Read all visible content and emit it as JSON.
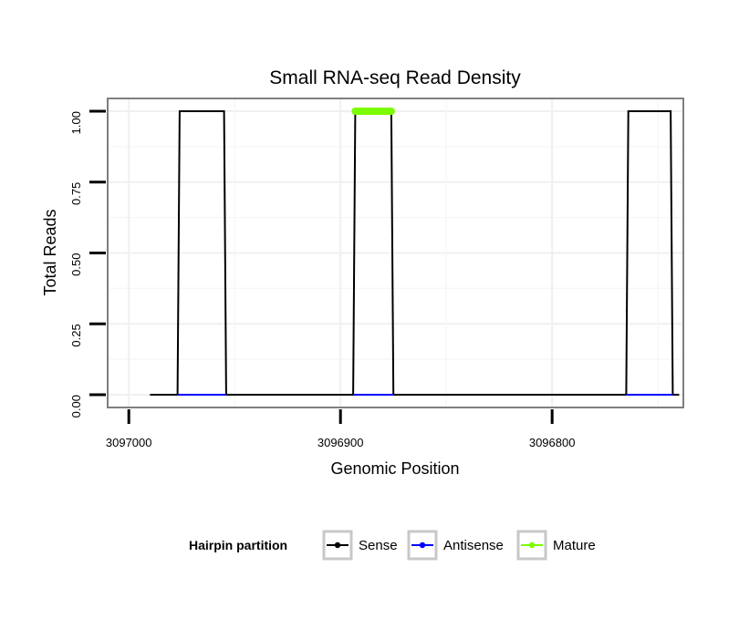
{
  "chart_data": {
    "type": "line",
    "title": "Small RNA-seq Read Density",
    "xlabel": "Genomic Position",
    "ylabel": "Total Reads",
    "xlim": [
      3097010,
      3096738
    ],
    "ylim": [
      -0.045,
      1.045
    ],
    "x_reversed": true,
    "xticks": [
      3097000,
      3096900,
      3096800
    ],
    "xtick_labels": [
      "3097000",
      "3096900",
      "3096800"
    ],
    "yticks": [
      0,
      0.25,
      0.5,
      0.75,
      1.0
    ],
    "ytick_labels": [
      "0.00",
      "0.25",
      "0.50",
      "0.75",
      "1.00"
    ],
    "grid": true,
    "legend_position": "bottom",
    "legend_title": "Hairpin partition",
    "series": [
      {
        "name": "Sense",
        "color": "#000000",
        "x": [
          3096990,
          3096977,
          3096976,
          3096955,
          3096954,
          3096894,
          3096893,
          3096876,
          3096875,
          3096765,
          3096764,
          3096744,
          3096743,
          3096740
        ],
        "y": [
          0,
          0,
          1,
          1,
          0,
          0,
          1,
          1,
          0,
          0,
          1,
          1,
          0,
          0
        ]
      },
      {
        "name": "Antisense",
        "color": "#0000ff",
        "x": [
          3096977,
          3096954,
          null,
          3096894,
          3096875,
          null,
          3096765,
          3096743
        ],
        "y": [
          0,
          0,
          null,
          0,
          0,
          null,
          0,
          0
        ]
      },
      {
        "name": "Mature",
        "color": "#7cfc00",
        "x": [
          3096893,
          3096876
        ],
        "y": [
          1,
          1
        ]
      }
    ]
  }
}
